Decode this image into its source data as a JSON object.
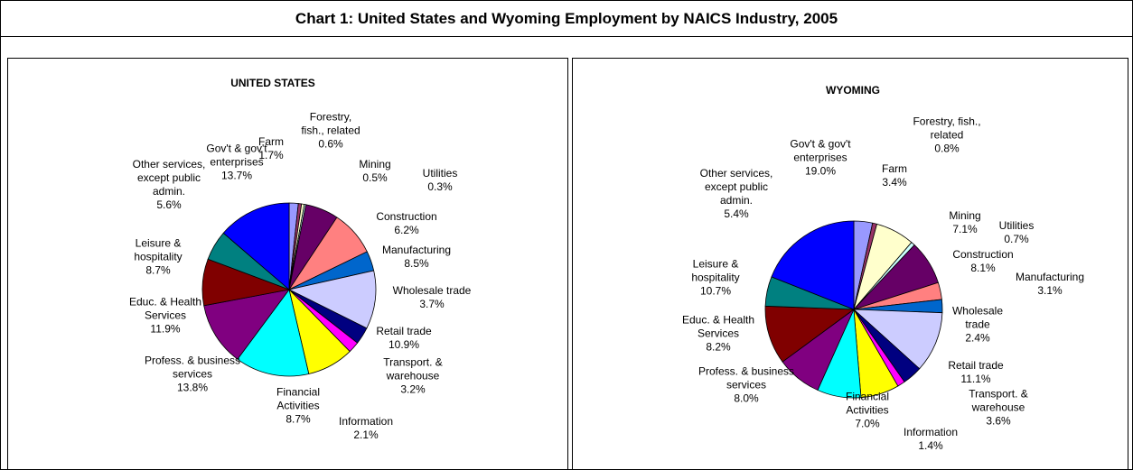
{
  "title": "Chart 1: United States and Wyoming Employment by NAICS Industry, 2005",
  "chart_data": [
    {
      "type": "pie",
      "title": "UNITED STATES",
      "categories": [
        "Farm",
        "Forestry, fish., related",
        "Mining",
        "Utilities",
        "Construction",
        "Manufacturing",
        "Wholesale trade",
        "Retail trade",
        "Transport. & warehouse",
        "Information",
        "Financial Activities",
        "Profess. & business services",
        "Educ. & Health Services",
        "Leisure & hospitality",
        "Other services, except public admin.",
        "Gov't & gov't enterprises"
      ],
      "values": [
        1.7,
        0.6,
        0.5,
        0.3,
        6.2,
        8.5,
        3.7,
        10.9,
        3.2,
        2.1,
        8.7,
        13.8,
        11.9,
        8.7,
        5.6,
        13.7
      ],
      "value_labels": [
        "1.7%",
        "0.6%",
        "0.5%",
        "0.3%",
        "6.2%",
        "8.5%",
        "3.7%",
        "10.9%",
        "3.2%",
        "2.1%",
        "8.7%",
        "13.8%",
        "11.9%",
        "8.7%",
        "5.6%",
        "13.7%"
      ],
      "colors": [
        "#9999ff",
        "#993366",
        "#ffffcc",
        "#ccffff",
        "#660066",
        "#ff8080",
        "#0066cc",
        "#ccccff",
        "#000080",
        "#ff00ff",
        "#ffff00",
        "#00ffff",
        "#800080",
        "#800000",
        "#008080",
        "#0000ff"
      ]
    },
    {
      "type": "pie",
      "title": "WYOMING",
      "categories": [
        "Farm",
        "Forestry, fish., related",
        "Mining",
        "Utilities",
        "Construction",
        "Manufacturing",
        "Wholesale trade",
        "Retail trade",
        "Transport. & warehouse",
        "Information",
        "Financial Activities",
        "Profess. & business services",
        "Educ. & Health Services",
        "Leisure & hospitality",
        "Other services, except public admin.",
        "Gov't & gov't enterprises"
      ],
      "values": [
        3.4,
        0.8,
        7.1,
        0.7,
        8.1,
        3.1,
        2.4,
        11.1,
        3.6,
        1.4,
        7.0,
        8.0,
        8.2,
        10.7,
        5.4,
        19.0
      ],
      "value_labels": [
        "3.4%",
        "0.8%",
        "7.1%",
        "0.7%",
        "8.1%",
        "3.1%",
        "2.4%",
        "11.1%",
        "3.6%",
        "1.4%",
        "7.0%",
        "8.0%",
        "8.2%",
        "10.7%",
        "5.4%",
        "19.0%"
      ],
      "colors": [
        "#9999ff",
        "#993366",
        "#ffffcc",
        "#ccffff",
        "#660066",
        "#ff8080",
        "#0066cc",
        "#ccccff",
        "#000080",
        "#ff00ff",
        "#ffff00",
        "#00ffff",
        "#800080",
        "#800000",
        "#008080",
        "#0000ff"
      ]
    }
  ]
}
